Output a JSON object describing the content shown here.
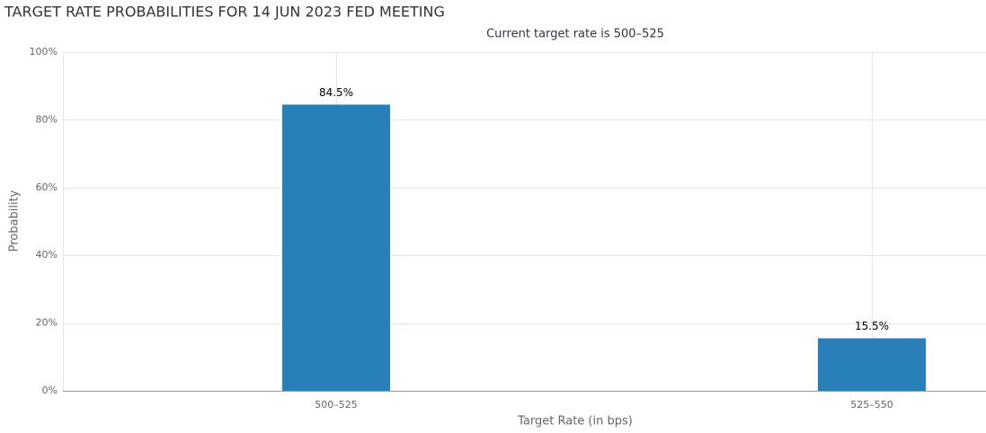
{
  "chart_data": {
    "type": "bar",
    "title": "TARGET RATE PROBABILITIES FOR 14 JUN 2023 FED MEETING",
    "subtitle": "Current target rate is 500–525",
    "x_label": "Target Rate (in bps)",
    "y_label": "Probability",
    "categories": [
      "500–525",
      "525–550"
    ],
    "values": [
      84.5,
      15.5
    ],
    "value_labels": [
      "84.5%",
      "15.5%"
    ],
    "color": "#2980b9",
    "ylim": [
      0,
      100
    ],
    "yticks": [
      {
        "value": 0,
        "label": "0%"
      },
      {
        "value": 20,
        "label": "20%"
      },
      {
        "value": 40,
        "label": "40%"
      },
      {
        "value": 60,
        "label": "60%"
      },
      {
        "value": 80,
        "label": "80%"
      },
      {
        "value": 100,
        "label": "100%"
      }
    ],
    "grid": true
  }
}
